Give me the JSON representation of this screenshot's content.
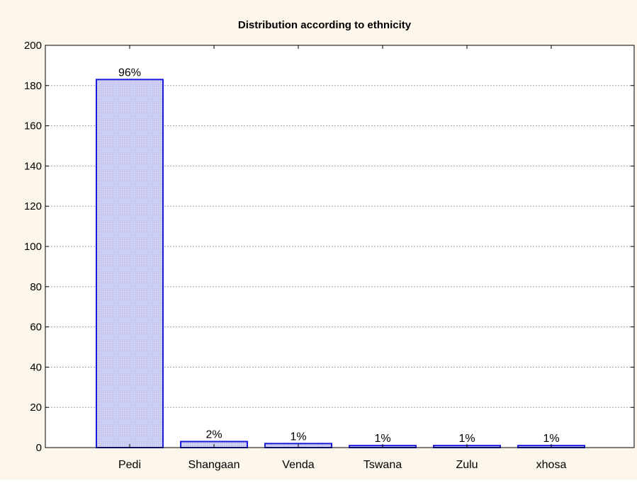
{
  "colors": {
    "background": "#fdf6ea",
    "plot_background": "#ffffff",
    "bar_fill": "#c7c9f0",
    "bar_stroke": "#1a1adc",
    "axis": "#000000",
    "grid": "#a0a0a0"
  },
  "chart_data": {
    "type": "bar",
    "title": "Distribution according to ethnicity",
    "xlabel": "",
    "ylabel": "",
    "categories": [
      "Pedi",
      "Shangaan",
      "Venda",
      "Tswana",
      "Zulu",
      "xhosa"
    ],
    "values": [
      183,
      3,
      2,
      1,
      1,
      1
    ],
    "data_labels": [
      "96%",
      "2%",
      "1%",
      "1%",
      "1%",
      "1%"
    ],
    "ylim": [
      0,
      200
    ],
    "yticks": [
      0,
      20,
      40,
      60,
      80,
      100,
      120,
      140,
      160,
      180,
      200
    ],
    "grid": true,
    "legend": "none"
  }
}
